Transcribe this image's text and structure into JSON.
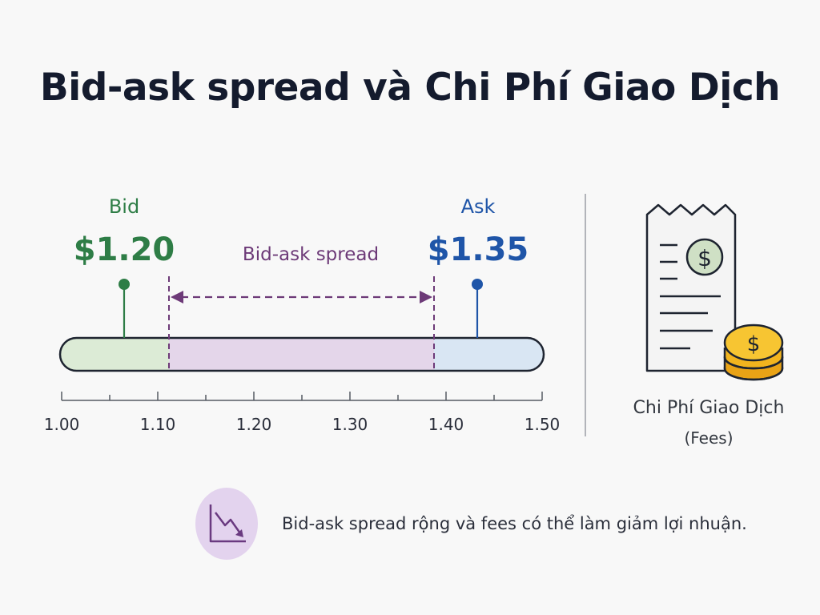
{
  "title": "Bid-ask spread và Chi Phí Giao Dịch",
  "bid": {
    "label": "Bid",
    "price": "$1.20",
    "value": 1.2
  },
  "ask": {
    "label": "Ask",
    "price": "$1.35",
    "value": 1.35
  },
  "spread_label": "Bid-ask spread",
  "axis": {
    "min": 1.0,
    "max": 1.5,
    "ticks": [
      "1.00",
      "1.10",
      "1.20",
      "1.30",
      "1.40",
      "1.50"
    ]
  },
  "fees": {
    "title": "Chi Phí Giao Dịch",
    "subtitle": "(Fees)"
  },
  "note": "Bid-ask spread rộng và fees có thể làm giảm lợi nhuận.",
  "colors": {
    "bid": "#2e7d46",
    "ask": "#1f55a8",
    "spread": "#6d3a78",
    "bid_fill": "#dcebd6",
    "spread_fill": "#e4d6ea",
    "ask_fill": "#d9e6f3",
    "coin": "#f2b41e"
  },
  "icons": [
    "receipt-icon",
    "dollar-coin-icon",
    "coin-stack-icon",
    "trend-down-icon"
  ]
}
